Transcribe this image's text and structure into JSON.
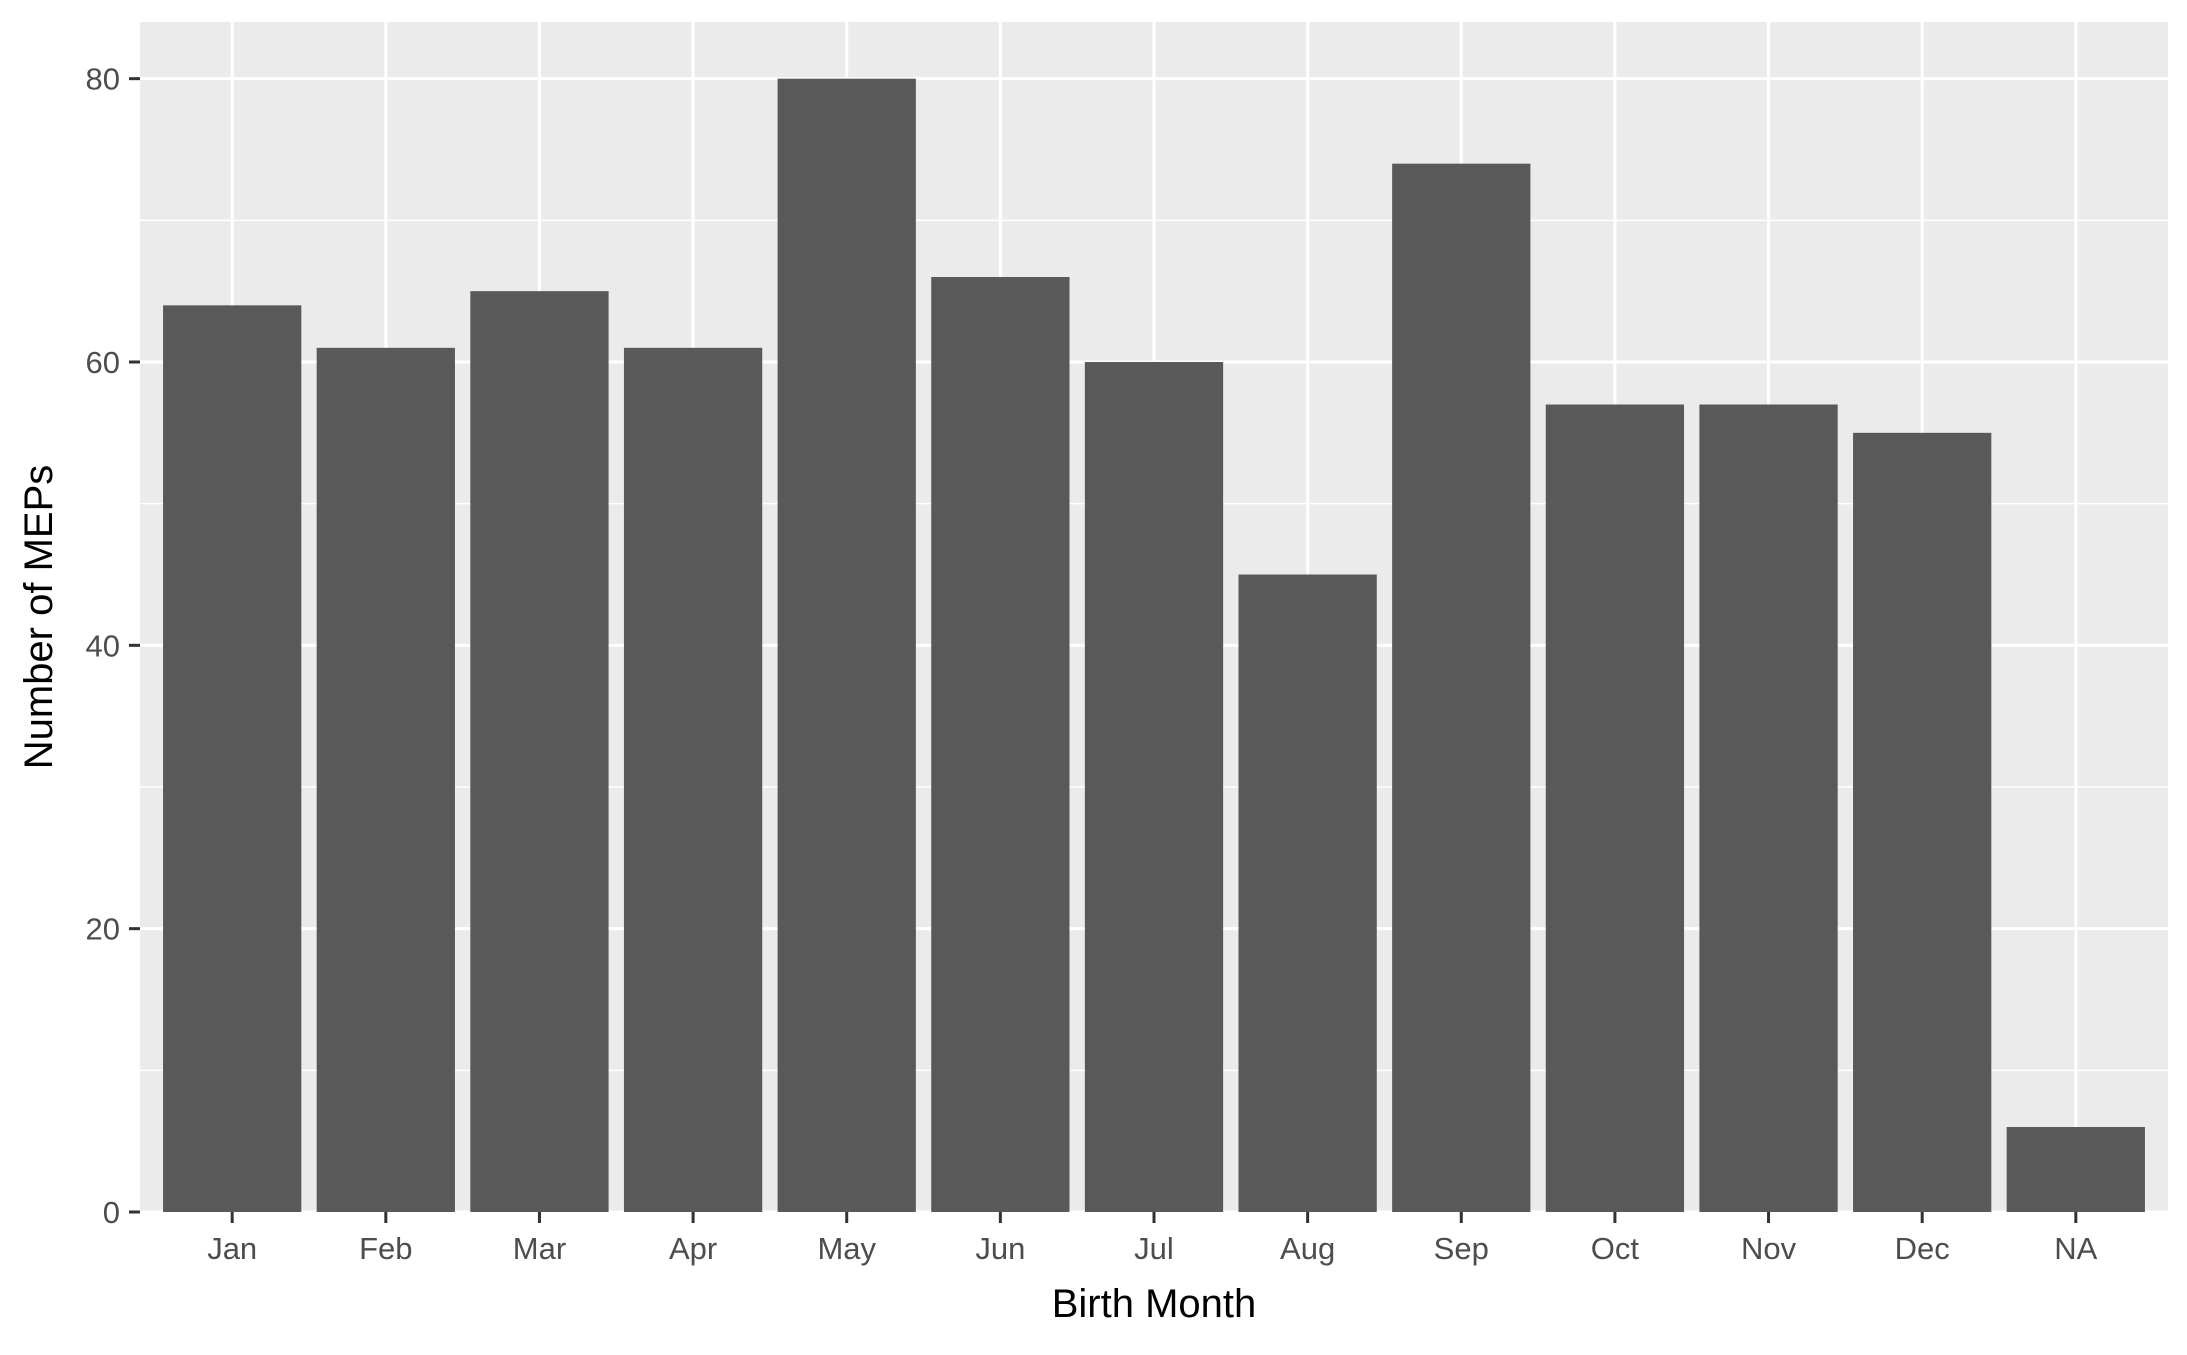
{
  "chart_data": {
    "type": "bar",
    "title": "",
    "xlabel": "Birth Month",
    "ylabel": "Number of MEPs",
    "categories": [
      "Jan",
      "Feb",
      "Mar",
      "Apr",
      "May",
      "Jun",
      "Jul",
      "Aug",
      "Sep",
      "Oct",
      "Nov",
      "Dec",
      "NA"
    ],
    "values": [
      64,
      61,
      65,
      61,
      80,
      66,
      60,
      45,
      74,
      57,
      57,
      55,
      6
    ],
    "ylim": [
      0,
      84
    ],
    "y_ticks": [
      0,
      20,
      40,
      60,
      80
    ],
    "y_minor_ticks": [
      10,
      30,
      50,
      70
    ],
    "grid": true,
    "legend": "none"
  },
  "colors": {
    "panel_background": "#EBEBEB",
    "grid_line": "#FFFFFF",
    "bar_fill": "#595959",
    "axis_text": "#4D4D4D",
    "tick_mark": "#333333",
    "title_text": "#000000"
  }
}
